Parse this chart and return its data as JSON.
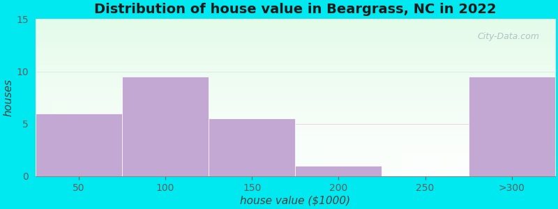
{
  "title": "Distribution of house value in Beargrass, NC in 2022",
  "xlabel": "house value ($1000)",
  "ylabel": "houses",
  "categories": [
    "50",
    "100",
    "150",
    "200",
    "250",
    ">300"
  ],
  "values": [
    6,
    9.5,
    5.5,
    1,
    0,
    9.5
  ],
  "bar_color": "#c4a8d4",
  "bar_edgecolor": "#c4a8d4",
  "ylim": [
    0,
    15
  ],
  "yticks": [
    0,
    5,
    10,
    15
  ],
  "background_outer": "#00e8f0",
  "title_fontsize": 14,
  "axis_label_fontsize": 11,
  "tick_fontsize": 10,
  "watermark_text": "City-Data.com",
  "bar_width": 1.0
}
